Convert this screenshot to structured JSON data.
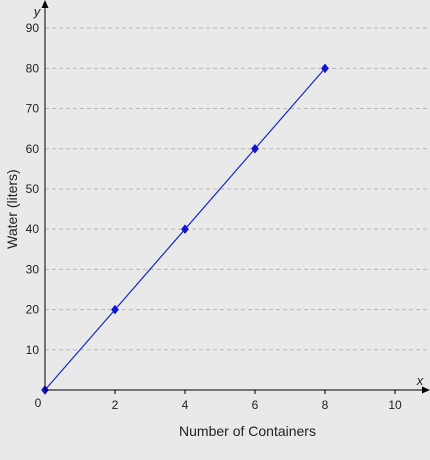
{
  "chart_data": {
    "type": "line",
    "title": "",
    "xlabel": "Number of Containers",
    "ylabel": "Water (liters)",
    "x_axis_symbol": "x",
    "y_axis_symbol": "y",
    "origin_label": "0",
    "xlim": [
      0,
      11
    ],
    "ylim": [
      0,
      97
    ],
    "x_ticks": [
      2,
      4,
      6,
      8,
      10
    ],
    "y_ticks": [
      10,
      20,
      30,
      40,
      50,
      60,
      70,
      80,
      90
    ],
    "grid": "horizontal-dashed",
    "series": [
      {
        "x": [
          0,
          2,
          4,
          6,
          8
        ],
        "y": [
          0,
          20,
          40,
          60,
          80
        ]
      }
    ],
    "colors": {
      "series": "#1a2bb5",
      "marker": "#1414cc",
      "axis": "#000000",
      "grid": "#b9b9b9",
      "background": "#e9e9e9"
    }
  }
}
